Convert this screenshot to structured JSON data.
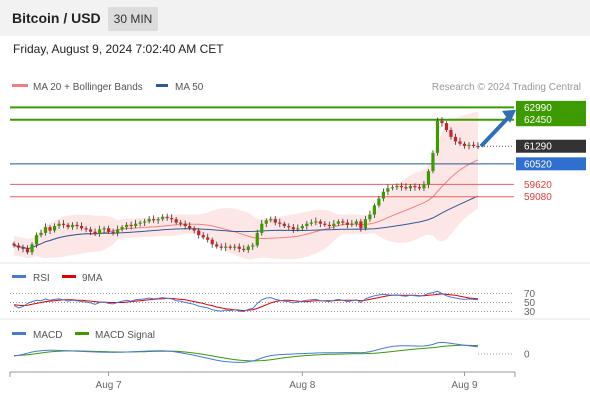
{
  "header": {
    "title": "Bitcoin / USD",
    "timeframe": "30 MIN"
  },
  "timestamp": "Friday, August 9, 2024 7:02:40 AM CET",
  "credit": "Research © 2024 Trading Central",
  "colors": {
    "resistance": "#3d9a00",
    "support": "#e86060",
    "pivot": "#1f5a96",
    "ma20": "#f08080",
    "ma50": "#2f5a9a",
    "band": "#fde0e0",
    "rsi": "#4a78d8",
    "rsi_ma": "#e00000",
    "macd": "#4a78d8",
    "macd_signal": "#3d9a00",
    "arrow": "#2f6fb5"
  },
  "chart_data": [
    {
      "type": "line",
      "name": "price",
      "legend": [
        {
          "label": "MA 20 + Bollinger Bands",
          "color": "#f08080"
        },
        {
          "label": "MA 50",
          "color": "#2f5a9a"
        }
      ],
      "x_ticks": [
        "Aug 7",
        "Aug 8",
        "Aug 9"
      ],
      "ylim": [
        56400,
        63400
      ],
      "levels": [
        {
          "label": "62990",
          "value": 62990,
          "kind": "resistance"
        },
        {
          "label": "62450",
          "value": 62450,
          "kind": "resistance"
        },
        {
          "label": "61290",
          "value": 61290,
          "kind": "current"
        },
        {
          "label": "60520",
          "value": 60520,
          "kind": "pivot"
        },
        {
          "label": "59620",
          "value": 59620,
          "kind": "support"
        },
        {
          "label": "59080",
          "value": 59080,
          "kind": "support"
        }
      ],
      "closes": [
        56950,
        56850,
        56800,
        56650,
        57000,
        57400,
        57500,
        57750,
        57600,
        57800,
        57900,
        57850,
        57750,
        57850,
        57800,
        57700,
        57650,
        57550,
        57450,
        57650,
        57700,
        57550,
        57500,
        57650,
        57750,
        57850,
        57800,
        57900,
        57950,
        58000,
        58100,
        58050,
        58100,
        58200,
        58150,
        58100,
        57950,
        57900,
        57800,
        57700,
        57600,
        57400,
        57300,
        57200,
        57000,
        56900,
        56850,
        56900,
        56850,
        56900,
        56800,
        56750,
        56900,
        56950,
        57500,
        57900,
        58050,
        58100,
        57950,
        57900,
        57800,
        57750,
        57650,
        57700,
        57800,
        57900,
        57950,
        58000,
        57900,
        57850,
        57800,
        57900,
        58000,
        57950,
        57850,
        57900,
        58000,
        57700,
        58100,
        58300,
        58700,
        59000,
        59300,
        59450,
        59500,
        59550,
        59500,
        59450,
        59550,
        59500,
        59450,
        59600,
        60200,
        61000,
        62400,
        62300,
        62000,
        61700,
        61500,
        61400,
        61300,
        61350,
        61300,
        61290
      ]
    },
    {
      "type": "line",
      "name": "rsi",
      "legend": [
        {
          "label": "RSI",
          "color": "#4a78d8"
        },
        {
          "label": "9MA",
          "color": "#e00000"
        }
      ],
      "ylim": [
        20,
        80
      ],
      "levels": [
        70,
        50,
        30
      ],
      "level_labels": [
        "70",
        "50",
        "30"
      ],
      "rsi": [
        44,
        38,
        41,
        48,
        52,
        55,
        54,
        58,
        55,
        57,
        58,
        56,
        53,
        55,
        54,
        52,
        51,
        49,
        46,
        50,
        51,
        48,
        47,
        50,
        53,
        55,
        53,
        56,
        57,
        58,
        60,
        58,
        59,
        61,
        59,
        58,
        54,
        53,
        50,
        48,
        46,
        42,
        40,
        38,
        34,
        32,
        31,
        33,
        32,
        34,
        31,
        30,
        35,
        37,
        48,
        56,
        60,
        61,
        57,
        55,
        53,
        52,
        49,
        51,
        53,
        55,
        56,
        57,
        54,
        53,
        52,
        55,
        57,
        55,
        52,
        54,
        56,
        50,
        58,
        62,
        65,
        67,
        68,
        67,
        66,
        67,
        65,
        64,
        66,
        65,
        64,
        66,
        70,
        72,
        75,
        70,
        65,
        62,
        60,
        58,
        57,
        58,
        57,
        56
      ],
      "ma": [
        45,
        44,
        43,
        44,
        46,
        48,
        50,
        52,
        53,
        54,
        55,
        56,
        56,
        56,
        55,
        55,
        54,
        53,
        52,
        51,
        51,
        50,
        50,
        50,
        50,
        51,
        52,
        53,
        54,
        55,
        56,
        57,
        58,
        58,
        59,
        59,
        58,
        57,
        56,
        54,
        52,
        50,
        48,
        45,
        43,
        40,
        38,
        36,
        35,
        34,
        33,
        32,
        33,
        34,
        37,
        41,
        45,
        49,
        52,
        54,
        55,
        55,
        54,
        53,
        52,
        52,
        53,
        54,
        54,
        54,
        54,
        54,
        55,
        55,
        55,
        55,
        55,
        54,
        55,
        57,
        59,
        61,
        63,
        65,
        66,
        66,
        66,
        66,
        66,
        66,
        65,
        65,
        66,
        67,
        68,
        69,
        68,
        67,
        66,
        64,
        62,
        60,
        59,
        58
      ]
    },
    {
      "type": "line",
      "name": "macd",
      "legend": [
        {
          "label": "MACD",
          "color": "#4a78d8"
        },
        {
          "label": "MACD Signal",
          "color": "#3d9a00"
        }
      ],
      "ylim": [
        -900,
        700
      ],
      "levels": [
        0
      ],
      "level_labels": [
        "0"
      ],
      "macd": [
        -100,
        -60,
        -20,
        40,
        100,
        140,
        160,
        180,
        185,
        185,
        180,
        170,
        160,
        150,
        140,
        130,
        120,
        110,
        100,
        95,
        90,
        85,
        80,
        85,
        90,
        100,
        110,
        120,
        130,
        140,
        150,
        155,
        160,
        160,
        150,
        130,
        100,
        60,
        20,
        -20,
        -60,
        -110,
        -160,
        -210,
        -260,
        -310,
        -350,
        -380,
        -400,
        -410,
        -420,
        -410,
        -390,
        -350,
        -280,
        -200,
        -130,
        -80,
        -50,
        -30,
        -20,
        -10,
        0,
        10,
        20,
        30,
        40,
        50,
        55,
        60,
        60,
        60,
        65,
        70,
        70,
        70,
        70,
        60,
        80,
        120,
        170,
        230,
        290,
        340,
        380,
        400,
        410,
        410,
        405,
        400,
        395,
        400,
        430,
        480,
        560,
        580,
        560,
        530,
        500,
        470,
        440,
        410,
        380,
        360
      ],
      "signal": [
        -80,
        -70,
        -55,
        -35,
        -10,
        20,
        50,
        80,
        105,
        125,
        140,
        150,
        155,
        155,
        153,
        150,
        145,
        140,
        132,
        125,
        118,
        111,
        104,
        100,
        98,
        98,
        100,
        104,
        110,
        116,
        123,
        130,
        136,
        141,
        143,
        141,
        133,
        119,
        99,
        75,
        48,
        17,
        -18,
        -56,
        -96,
        -137,
        -177,
        -215,
        -250,
        -280,
        -305,
        -325,
        -338,
        -344,
        -341,
        -331,
        -312,
        -285,
        -254,
        -221,
        -190,
        -162,
        -136,
        -113,
        -93,
        -75,
        -59,
        -45,
        -33,
        -22,
        -14,
        -8,
        -3,
        2,
        6,
        10,
        14,
        17,
        21,
        28,
        39,
        54,
        74,
        98,
        123,
        149,
        175,
        201,
        224,
        245,
        263,
        279,
        298,
        320,
        347,
        375,
        400,
        416,
        427,
        433,
        435,
        432,
        426,
        418
      ]
    }
  ]
}
